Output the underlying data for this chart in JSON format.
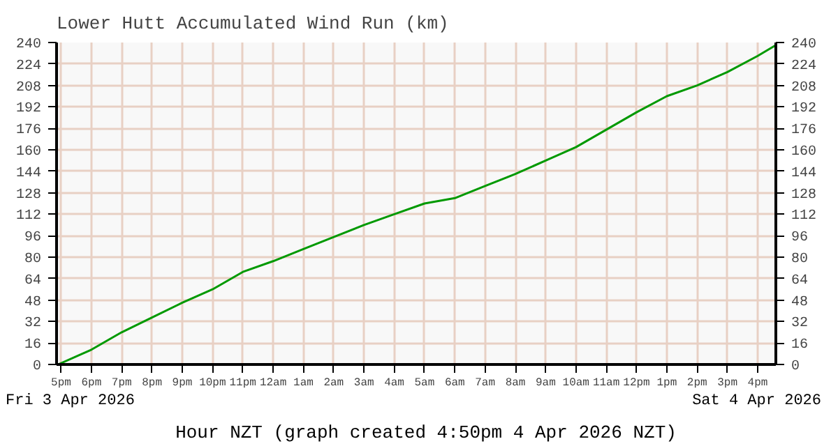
{
  "chart_data": {
    "type": "line",
    "title": "Lower Hutt Accumulated Wind Run (km)",
    "xlabel": "Hour NZT (graph created 4:50pm 4 Apr 2026 NZT)",
    "annotations": [
      "Fri 3 Apr 2026",
      "Sat 4 Apr 2026"
    ],
    "x": [
      "2026-04-03T16:54",
      "2026-04-03T18:00",
      "2026-04-03T19:00",
      "2026-04-03T20:00",
      "2026-04-03T21:00",
      "2026-04-03T22:00",
      "2026-04-03T23:00",
      "2026-04-04T00:00",
      "2026-04-04T01:00",
      "2026-04-04T02:00",
      "2026-04-04T03:00",
      "2026-04-04T04:00",
      "2026-04-04T05:00",
      "2026-04-04T06:00",
      "2026-04-04T07:00",
      "2026-04-04T08:00",
      "2026-04-04T09:00",
      "2026-04-04T10:00",
      "2026-04-04T11:00",
      "2026-04-04T12:00",
      "2026-04-04T13:00",
      "2026-04-04T14:00",
      "2026-04-04T15:00",
      "2026-04-04T16:00",
      "2026-04-04T16:36"
    ],
    "series": [
      {
        "color": "#009900",
        "values": [
          0,
          11,
          24,
          35,
          46,
          56,
          69,
          77,
          86,
          95,
          104,
          112,
          120,
          124,
          133,
          142,
          152,
          162,
          175,
          188,
          200,
          208,
          218,
          230,
          238
        ]
      }
    ],
    "xlim": [
      "2026-04-03T16:51",
      "2026-04-04T16:36"
    ],
    "ylim": [
      0,
      240
    ],
    "y2lim": [
      0,
      240
    ],
    "xticks": [
      {
        "value": "2026-04-03T17:00",
        "label": "5pm"
      },
      {
        "value": "2026-04-03T18:00",
        "label": "6pm"
      },
      {
        "value": "2026-04-03T19:00",
        "label": "7pm"
      },
      {
        "value": "2026-04-03T20:00",
        "label": "8pm"
      },
      {
        "value": "2026-04-03T21:00",
        "label": "9pm"
      },
      {
        "value": "2026-04-03T22:00",
        "label": "10pm"
      },
      {
        "value": "2026-04-03T23:00",
        "label": "11pm"
      },
      {
        "value": "2026-04-04T00:00",
        "label": "12am"
      },
      {
        "value": "2026-04-04T01:00",
        "label": "1am"
      },
      {
        "value": "2026-04-04T02:00",
        "label": "2am"
      },
      {
        "value": "2026-04-04T03:00",
        "label": "3am"
      },
      {
        "value": "2026-04-04T04:00",
        "label": "4am"
      },
      {
        "value": "2026-04-04T05:00",
        "label": "5am"
      },
      {
        "value": "2026-04-04T06:00",
        "label": "6am"
      },
      {
        "value": "2026-04-04T07:00",
        "label": "7am"
      },
      {
        "value": "2026-04-04T08:00",
        "label": "8am"
      },
      {
        "value": "2026-04-04T09:00",
        "label": "9am"
      },
      {
        "value": "2026-04-04T10:00",
        "label": "10am"
      },
      {
        "value": "2026-04-04T11:00",
        "label": "11am"
      },
      {
        "value": "2026-04-04T12:00",
        "label": "12pm"
      },
      {
        "value": "2026-04-04T13:00",
        "label": "1pm"
      },
      {
        "value": "2026-04-04T14:00",
        "label": "2pm"
      },
      {
        "value": "2026-04-04T15:00",
        "label": "3pm"
      },
      {
        "value": "2026-04-04T16:00",
        "label": "4pm"
      }
    ],
    "yticks": [
      0,
      16,
      32,
      48,
      64,
      80,
      96,
      112,
      128,
      144,
      160,
      176,
      192,
      208,
      224,
      240
    ],
    "y2ticks": [
      0,
      16,
      32,
      48,
      64,
      80,
      96,
      112,
      128,
      144,
      160,
      176,
      192,
      208,
      224,
      240
    ],
    "grid": true,
    "marker": "none",
    "line_style": "solid"
  }
}
